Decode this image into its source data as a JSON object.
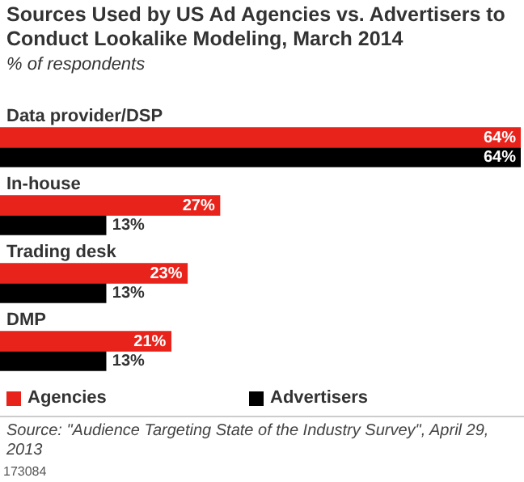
{
  "chart_data": {
    "type": "bar",
    "orientation": "horizontal",
    "title": "Sources Used by US Ad Agencies vs. Advertisers to Conduct Lookalike Modeling, March 2014",
    "subtitle": "% of respondents",
    "categories": [
      "Data provider/DSP",
      "In-house",
      "Trading desk",
      "DMP"
    ],
    "series": [
      {
        "name": "Agencies",
        "color": "#e8231b",
        "values": [
          64,
          27,
          23,
          21
        ],
        "value_labels": [
          "64%",
          "27%",
          "23%",
          "21%"
        ]
      },
      {
        "name": "Advertisers",
        "color": "#000000",
        "values": [
          64,
          13,
          13,
          13
        ],
        "value_labels": [
          "64%",
          "13%",
          "13%",
          "13%"
        ]
      }
    ],
    "legend": "bottom",
    "annotations": [
      "Source: \"Audience Targeting State of the Industry Survey\", April 29, 2013",
      "173084"
    ]
  }
}
